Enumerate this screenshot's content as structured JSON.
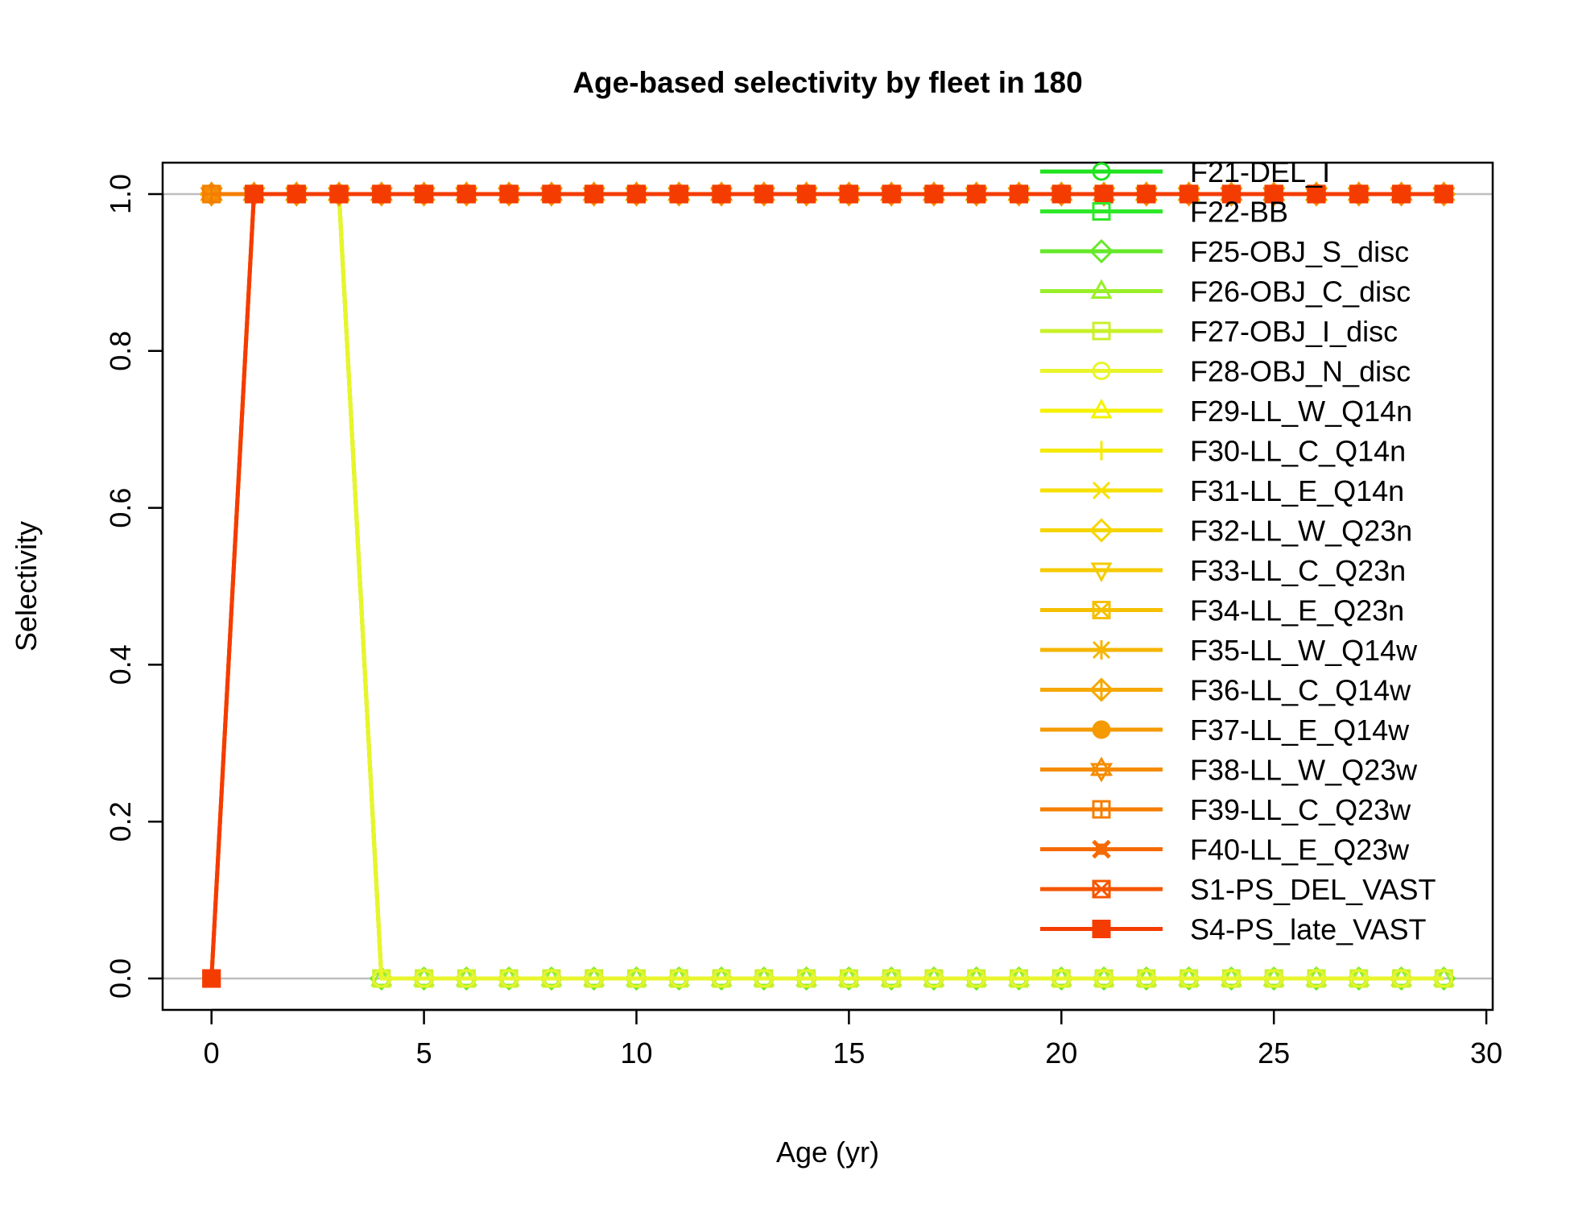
{
  "chart_data": {
    "type": "line",
    "title": "Age-based selectivity by fleet in 180",
    "xlabel": "Age (yr)",
    "ylabel": "Selectivity",
    "xlim": [
      -1.15,
      30.15
    ],
    "ylim": [
      -0.04,
      1.04
    ],
    "xticks": [
      0,
      5,
      10,
      15,
      20,
      25,
      30
    ],
    "yticks": [
      0.0,
      0.2,
      0.4,
      0.6,
      0.8,
      1.0
    ],
    "xtick_labels": [
      "0",
      "5",
      "10",
      "15",
      "20",
      "25",
      "30"
    ],
    "ytick_labels": [
      "0.0",
      "0.2",
      "0.4",
      "0.6",
      "0.8",
      "1.0"
    ],
    "gridlines_y": [
      0,
      1
    ],
    "legend_position": "top-right",
    "x": [
      0,
      1,
      2,
      3,
      4,
      5,
      6,
      7,
      8,
      9,
      10,
      11,
      12,
      13,
      14,
      15,
      16,
      17,
      18,
      19,
      20,
      21,
      22,
      23,
      24,
      25,
      26,
      27,
      28,
      29
    ],
    "series": [
      {
        "name": "F21-DEL_I",
        "color": "#1ee31e",
        "marker": "circle-open",
        "curve": "flat_one"
      },
      {
        "name": "F22-BB",
        "color": "#2ee82a",
        "marker": "square-open",
        "curve": "flat_one"
      },
      {
        "name": "F25-OBJ_S_disc",
        "color": "#66e82a",
        "marker": "diamond-open",
        "curve": "juvenile"
      },
      {
        "name": "F26-OBJ_C_disc",
        "color": "#99ee2a",
        "marker": "triangle-open",
        "curve": "juvenile"
      },
      {
        "name": "F27-OBJ_I_disc",
        "color": "#c8f02a",
        "marker": "square-open",
        "curve": "juvenile"
      },
      {
        "name": "F28-OBJ_N_disc",
        "color": "#e8f52a",
        "marker": "circle-open",
        "curve": "juvenile"
      },
      {
        "name": "F29-LL_W_Q14n",
        "color": "#f5f200",
        "marker": "triangle-open",
        "curve": "flat_one"
      },
      {
        "name": "F30-LL_C_Q14n",
        "color": "#f5ea00",
        "marker": "plus",
        "curve": "flat_one"
      },
      {
        "name": "F31-LL_E_Q14n",
        "color": "#f5e000",
        "marker": "cross",
        "curve": "flat_one"
      },
      {
        "name": "F32-LL_W_Q23n",
        "color": "#f5d500",
        "marker": "diamond-open",
        "curve": "flat_one"
      },
      {
        "name": "F33-LL_C_Q23n",
        "color": "#f5cb00",
        "marker": "triangle-down-open",
        "curve": "flat_one"
      },
      {
        "name": "F34-LL_E_Q23n",
        "color": "#f5c000",
        "marker": "square-cross",
        "curve": "flat_one"
      },
      {
        "name": "F35-LL_W_Q14w",
        "color": "#f5b500",
        "marker": "asterisk",
        "curve": "flat_one"
      },
      {
        "name": "F36-LL_C_Q14w",
        "color": "#f5a800",
        "marker": "diamond-plus",
        "curve": "flat_one"
      },
      {
        "name": "F37-LL_E_Q14w",
        "color": "#f59a00",
        "marker": "circle-filled",
        "curve": "flat_one"
      },
      {
        "name": "F38-LL_W_Q23w",
        "color": "#f58c00",
        "marker": "star-of-david",
        "curve": "flat_one"
      },
      {
        "name": "F39-LL_C_Q23w",
        "color": "#f57d00",
        "marker": "square-plus",
        "curve": "flat_one"
      },
      {
        "name": "F40-LL_E_Q23w",
        "color": "#f56a00",
        "marker": "box-x",
        "curve": "ramp"
      },
      {
        "name": "S1-PS_DEL_VAST",
        "color": "#f55500",
        "marker": "square-x",
        "curve": "ramp"
      },
      {
        "name": "S4-PS_late_VAST",
        "color": "#f53c00",
        "marker": "square-filled",
        "curve": "ramp"
      }
    ],
    "curves": {
      "ramp": [
        0,
        1,
        1,
        1,
        1,
        1,
        1,
        1,
        1,
        1,
        1,
        1,
        1,
        1,
        1,
        1,
        1,
        1,
        1,
        1,
        1,
        1,
        1,
        1,
        1,
        1,
        1,
        1,
        1,
        1
      ],
      "flat_one": [
        1,
        1,
        1,
        1,
        1,
        1,
        1,
        1,
        1,
        1,
        1,
        1,
        1,
        1,
        1,
        1,
        1,
        1,
        1,
        1,
        1,
        1,
        1,
        1,
        1,
        1,
        1,
        1,
        1,
        1
      ],
      "juvenile": [
        1,
        1,
        1,
        1,
        0,
        0,
        0,
        0,
        0,
        0,
        0,
        0,
        0,
        0,
        0,
        0,
        0,
        0,
        0,
        0,
        0,
        0,
        0,
        0,
        0,
        0,
        0,
        0,
        0,
        0
      ]
    }
  }
}
